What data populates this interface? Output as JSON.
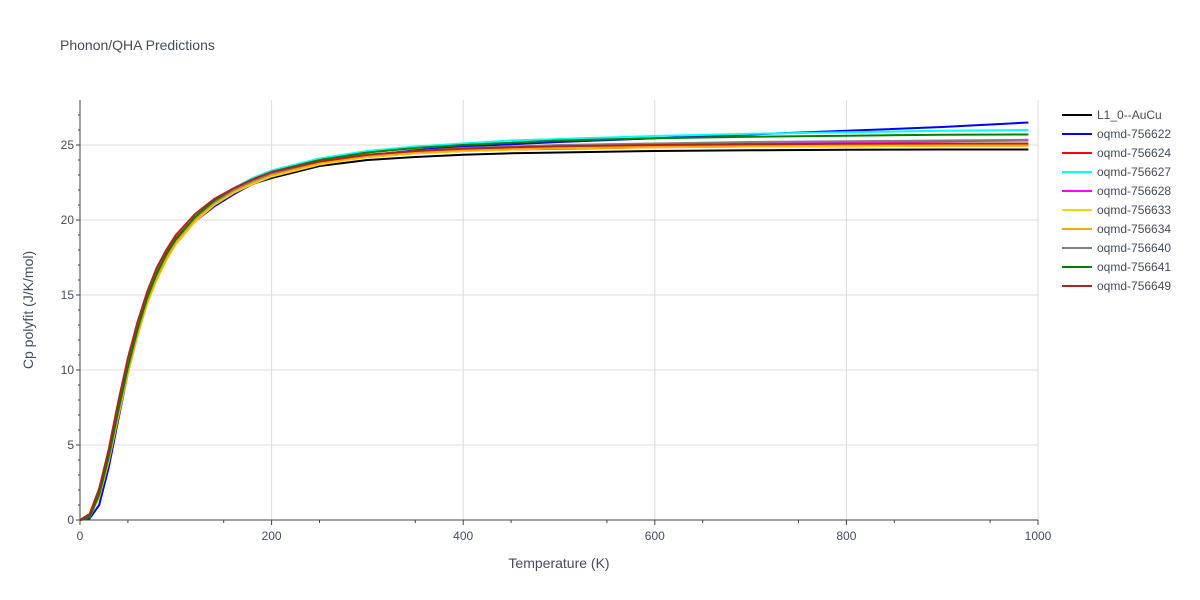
{
  "chart_data": {
    "type": "line",
    "title": "Phonon/QHA Predictions",
    "xlabel": "Temperature (K)",
    "ylabel": "Cp polyfit (J/K/mol)",
    "xlim": [
      0,
      1000
    ],
    "ylim": [
      0,
      28
    ],
    "xticks": [
      0,
      200,
      400,
      600,
      800,
      1000
    ],
    "yticks": [
      0,
      5,
      10,
      15,
      20,
      25
    ],
    "grid": true,
    "legend_position": "right",
    "x": [
      0,
      10,
      20,
      30,
      40,
      50,
      60,
      70,
      80,
      90,
      100,
      120,
      140,
      160,
      180,
      200,
      250,
      300,
      350,
      400,
      450,
      500,
      600,
      700,
      800,
      900,
      990
    ],
    "series": [
      {
        "name": "L1_0--AuCu",
        "color": "#000000",
        "values": [
          0,
          0.3,
          1.9,
          4.4,
          7.5,
          10.4,
          12.9,
          14.9,
          16.5,
          17.7,
          18.7,
          20.1,
          21.1,
          21.8,
          22.4,
          22.8,
          23.6,
          24.0,
          24.2,
          24.35,
          24.45,
          24.5,
          24.6,
          24.65,
          24.68,
          24.7,
          24.7
        ]
      },
      {
        "name": "oqmd-756622",
        "color": "#0000ff",
        "values": [
          0,
          0.1,
          1.0,
          3.5,
          6.7,
          9.8,
          12.3,
          14.5,
          16.1,
          17.4,
          18.4,
          19.9,
          20.9,
          21.7,
          22.4,
          22.9,
          23.7,
          24.3,
          24.65,
          24.9,
          25.05,
          25.2,
          25.45,
          25.7,
          25.95,
          26.2,
          26.5
        ]
      },
      {
        "name": "oqmd-756624",
        "color": "#ff0000",
        "values": [
          0,
          0.3,
          1.9,
          4.5,
          7.6,
          10.5,
          13.0,
          15.0,
          16.6,
          17.8,
          18.8,
          20.2,
          21.2,
          21.9,
          22.5,
          23.0,
          23.8,
          24.2,
          24.45,
          24.6,
          24.7,
          24.75,
          24.85,
          24.9,
          24.92,
          24.95,
          24.95
        ]
      },
      {
        "name": "oqmd-756627",
        "color": "#00ffff",
        "values": [
          0,
          0.2,
          1.7,
          4.2,
          7.3,
          10.2,
          12.7,
          14.7,
          16.4,
          17.7,
          18.7,
          20.2,
          21.3,
          22.1,
          22.8,
          23.3,
          24.1,
          24.6,
          24.9,
          25.1,
          25.3,
          25.4,
          25.6,
          25.75,
          25.85,
          25.95,
          26.0
        ]
      },
      {
        "name": "oqmd-756628",
        "color": "#ff00ff",
        "values": [
          0,
          0.3,
          1.8,
          4.3,
          7.4,
          10.3,
          12.8,
          14.8,
          16.4,
          17.6,
          18.6,
          20.1,
          21.1,
          21.9,
          22.5,
          23.0,
          23.8,
          24.3,
          24.55,
          24.75,
          24.85,
          24.95,
          25.05,
          25.15,
          25.2,
          25.25,
          25.3
        ]
      },
      {
        "name": "oqmd-756633",
        "color": "#ffd700",
        "values": [
          0,
          0.2,
          1.5,
          3.9,
          6.9,
          9.8,
          12.3,
          14.4,
          16.0,
          17.3,
          18.4,
          19.9,
          21.0,
          21.8,
          22.4,
          22.9,
          23.7,
          24.2,
          24.45,
          24.6,
          24.7,
          24.78,
          24.85,
          24.9,
          24.92,
          24.95,
          24.95
        ]
      },
      {
        "name": "oqmd-756634",
        "color": "#ffa500",
        "values": [
          0,
          0.2,
          1.6,
          4.0,
          7.0,
          9.9,
          12.4,
          14.5,
          16.1,
          17.4,
          18.5,
          20.0,
          21.1,
          21.9,
          22.5,
          23.0,
          23.8,
          24.25,
          24.5,
          24.65,
          24.75,
          24.82,
          24.9,
          24.95,
          24.98,
          25.0,
          25.0
        ]
      },
      {
        "name": "oqmd-756640",
        "color": "#808080",
        "values": [
          0,
          0.3,
          1.8,
          4.4,
          7.5,
          10.4,
          12.9,
          14.9,
          16.5,
          17.7,
          18.7,
          20.2,
          21.2,
          22.0,
          22.6,
          23.1,
          23.9,
          24.35,
          24.6,
          24.8,
          24.9,
          25.0,
          25.1,
          25.2,
          25.25,
          25.3,
          25.35
        ]
      },
      {
        "name": "oqmd-756641",
        "color": "#008000",
        "values": [
          0,
          0.2,
          1.7,
          4.2,
          7.3,
          10.2,
          12.7,
          14.8,
          16.4,
          17.7,
          18.7,
          20.2,
          21.3,
          22.1,
          22.7,
          23.2,
          24.0,
          24.5,
          24.8,
          25.0,
          25.15,
          25.3,
          25.45,
          25.55,
          25.62,
          25.68,
          25.7
        ]
      },
      {
        "name": "oqmd-756649",
        "color": "#b22222",
        "values": [
          0,
          0.4,
          2.1,
          4.7,
          7.9,
          10.8,
          13.2,
          15.2,
          16.8,
          18.0,
          19.0,
          20.4,
          21.4,
          22.1,
          22.7,
          23.2,
          23.9,
          24.35,
          24.6,
          24.75,
          24.85,
          24.92,
          25.0,
          25.05,
          25.08,
          25.1,
          25.1
        ]
      }
    ]
  }
}
